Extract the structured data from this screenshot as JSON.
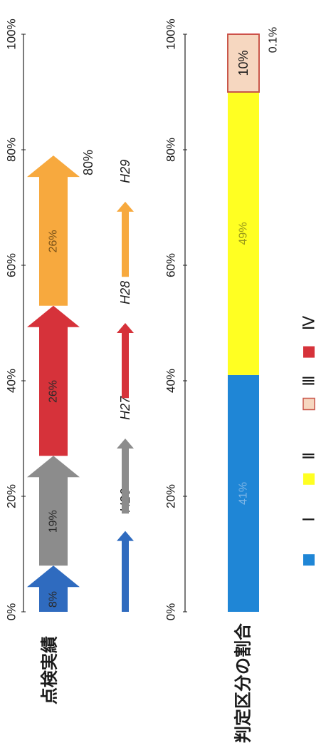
{
  "chart_data": [
    {
      "type": "bar",
      "title": "点検実績",
      "xlim": [
        0,
        100
      ],
      "tick_labels": [
        "0%",
        "20%",
        "40%",
        "60%",
        "80%",
        "100%"
      ],
      "series": [
        {
          "name": "H26",
          "start": 0,
          "value": 8,
          "label": "8%",
          "color": "#2f6bbf"
        },
        {
          "name": "H27",
          "start": 8,
          "value": 19,
          "label": "19%",
          "color": "#8c8c8c"
        },
        {
          "name": "H28",
          "start": 27,
          "value": 26,
          "label": "26%",
          "color": "#d6323a"
        },
        {
          "name": "H29",
          "start": 53,
          "value": 26,
          "label": "26%",
          "color": "#f7a93e"
        }
      ],
      "cumulative_label": "80%",
      "cumulative_value": 80,
      "legend": [
        "H26",
        "H27",
        "H28",
        "H29"
      ]
    },
    {
      "type": "bar",
      "title": "判定区分の割合",
      "xlim": [
        0,
        100
      ],
      "tick_labels": [
        "0%",
        "20%",
        "40%",
        "60%",
        "80%",
        "100%"
      ],
      "segments": [
        {
          "name": "Ⅰ",
          "value": 41,
          "label": "41%",
          "color": "#1f86d6"
        },
        {
          "name": "Ⅱ",
          "value": 49,
          "label": "49%",
          "color": "#ffff22"
        },
        {
          "name": "Ⅲ",
          "value": 10,
          "label": "10%",
          "color": "#f6d7c0"
        },
        {
          "name": "Ⅳ",
          "value": 0.1,
          "label": "0.1%",
          "color": "#d6323a"
        }
      ],
      "legend": [
        "Ⅰ",
        "Ⅱ",
        "Ⅲ",
        "Ⅳ"
      ]
    }
  ]
}
